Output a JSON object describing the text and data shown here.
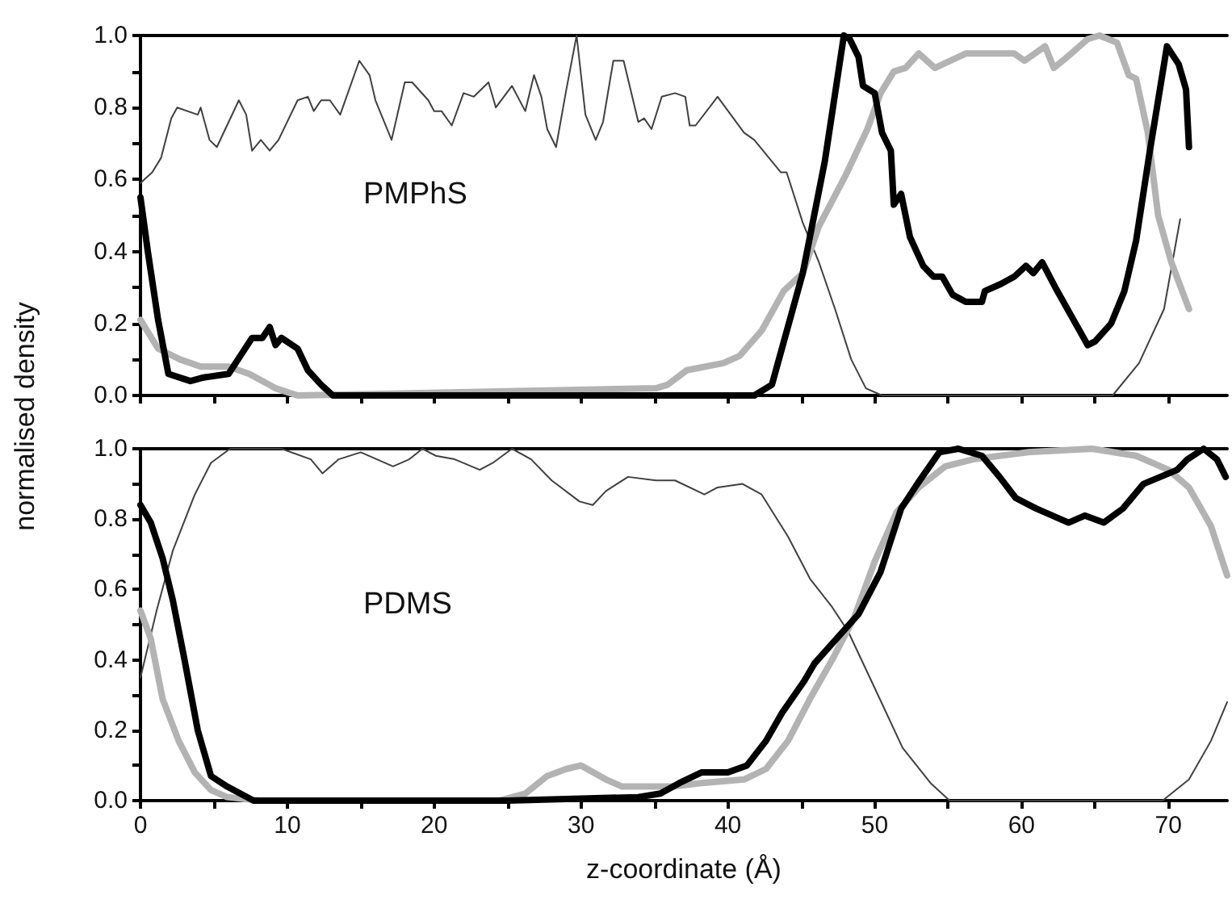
{
  "chart_data": [
    {
      "type": "line",
      "annotations": [
        "PMPhS"
      ],
      "ylabel": "normalised density",
      "xlim": [
        0,
        74
      ],
      "ylim": [
        0,
        1
      ],
      "xticks": [
        0,
        {
          "value": 5,
          "label": null
        },
        10,
        {
          "value": 15,
          "label": null
        },
        20,
        {
          "value": 25,
          "label": null
        },
        30,
        {
          "value": 35,
          "label": null
        },
        40,
        {
          "value": 45,
          "label": null
        },
        50,
        {
          "value": 55,
          "label": null
        },
        60,
        {
          "value": 65,
          "label": null
        },
        70
      ],
      "yticks": [
        {
          "value": 0,
          "label": "0.0"
        },
        {
          "value": 0.1,
          "label": null
        },
        {
          "value": 0.2,
          "label": "0.2"
        },
        {
          "value": 0.3,
          "label": null
        },
        {
          "value": 0.4,
          "label": "0.4"
        },
        {
          "value": 0.5,
          "label": null
        },
        {
          "value": 0.6,
          "label": "0.6"
        },
        {
          "value": 0.7,
          "label": null
        },
        {
          "value": 0.8,
          "label": "0.8"
        },
        {
          "value": 0.9,
          "label": null
        },
        {
          "value": 1,
          "label": "1.0"
        }
      ],
      "tick_labels": "y",
      "grid": false,
      "marker": "none",
      "line_style": "solid",
      "series": [
        {
          "color": "#000000",
          "x": [
            0,
            0.5,
            1.2,
            1.9,
            3.4,
            4.3,
            6.0,
            7.6,
            8.3,
            8.8,
            9.2,
            9.6,
            10.7,
            11.4,
            12.3,
            13.1,
            41.8,
            43.0,
            45.1,
            46.6,
            47.9,
            48.3,
            48.9,
            49.2,
            50.0,
            50.5,
            51.1,
            51.3,
            51.8,
            52.4,
            53.3,
            54.0,
            54.6,
            55.3,
            56.2,
            57.3,
            57.5,
            58.6,
            59.5,
            60.3,
            60.8,
            61.4,
            62.3,
            63.4,
            64.5,
            65.0,
            66.1,
            67.0,
            67.8,
            68.7,
            69.9,
            70.7,
            71.2,
            71.4
          ],
          "values": [
            0.55,
            0.4,
            0.21,
            0.06,
            0.04,
            0.05,
            0.06,
            0.16,
            0.16,
            0.19,
            0.14,
            0.16,
            0.13,
            0.07,
            0.03,
            0,
            0,
            0.03,
            0.34,
            0.65,
            1.0,
            0.99,
            0.94,
            0.86,
            0.84,
            0.73,
            0.68,
            0.53,
            0.56,
            0.44,
            0.36,
            0.33,
            0.33,
            0.28,
            0.26,
            0.26,
            0.29,
            0.31,
            0.33,
            0.36,
            0.34,
            0.37,
            0.3,
            0.22,
            0.14,
            0.15,
            0.2,
            0.29,
            0.43,
            0.67,
            0.97,
            0.92,
            0.85,
            0.69
          ]
        },
        {
          "color": "#b3b3b3",
          "x": [
            0,
            1.2,
            2.7,
            4.1,
            6.0,
            7.4,
            9.2,
            10.7,
            35.1,
            35.9,
            37.2,
            39.7,
            40.8,
            42.3,
            43.8,
            45.1,
            46.2,
            48.0,
            49.5,
            50.4,
            51.3,
            52.1,
            53.0,
            54.1,
            56.2,
            59.5,
            60.2,
            61.6,
            62.2,
            63.1,
            64.5,
            65.3,
            66.5,
            67.3,
            67.8,
            68.6,
            69.3,
            70.2,
            71.4
          ],
          "values": [
            0.21,
            0.13,
            0.1,
            0.08,
            0.08,
            0.06,
            0.02,
            0,
            0.02,
            0.03,
            0.07,
            0.09,
            0.11,
            0.18,
            0.29,
            0.34,
            0.47,
            0.61,
            0.74,
            0.84,
            0.9,
            0.91,
            0.95,
            0.91,
            0.95,
            0.95,
            0.93,
            0.97,
            0.91,
            0.94,
            0.99,
            1.0,
            0.98,
            0.89,
            0.88,
            0.73,
            0.5,
            0.37,
            0.24
          ]
        },
        {
          "color": "#404040",
          "x": [
            0,
            0.8,
            1.4,
            2.1,
            2.5,
            3.9,
            4.1,
            4.7,
            5.2,
            6.7,
            7.2,
            7.6,
            8.2,
            8.8,
            9.4,
            10.7,
            11.4,
            11.8,
            12.3,
            12.9,
            13.6,
            14.9,
            15.6,
            16.0,
            17.1,
            18.0,
            18.5,
            19.6,
            20.0,
            20.5,
            21.2,
            22.0,
            22.7,
            23.7,
            24.2,
            25.3,
            26.2,
            26.8,
            27.3,
            27.7,
            28.3,
            29.0,
            29.7,
            30.3,
            31.0,
            31.5,
            32.2,
            32.9,
            33.9,
            34.3,
            34.8,
            35.5,
            36.4,
            37.1,
            37.4,
            37.8,
            39.3,
            41.1,
            41.8,
            43.6,
            44.0,
            45.1,
            46.2,
            47.3,
            48.4,
            49.4,
            50.5,
            66.2,
            68.0,
            69.7,
            70.8
          ],
          "values": [
            0.59,
            0.62,
            0.66,
            0.77,
            0.8,
            0.78,
            0.8,
            0.71,
            0.69,
            0.82,
            0.78,
            0.68,
            0.71,
            0.68,
            0.71,
            0.82,
            0.83,
            0.79,
            0.82,
            0.82,
            0.78,
            0.93,
            0.89,
            0.82,
            0.71,
            0.87,
            0.87,
            0.82,
            0.79,
            0.79,
            0.75,
            0.84,
            0.83,
            0.87,
            0.8,
            0.86,
            0.79,
            0.89,
            0.83,
            0.74,
            0.69,
            0.85,
            1.0,
            0.78,
            0.71,
            0.76,
            0.93,
            0.93,
            0.76,
            0.77,
            0.74,
            0.83,
            0.84,
            0.83,
            0.75,
            0.75,
            0.83,
            0.73,
            0.71,
            0.62,
            0.62,
            0.48,
            0.37,
            0.24,
            0.1,
            0.02,
            0,
            0,
            0.09,
            0.24,
            0.49
          ]
        }
      ]
    },
    {
      "type": "line",
      "annotations": [
        "PDMS"
      ],
      "xlabel": "z-coordinate (Å)",
      "xlim": [
        0,
        74
      ],
      "ylim": [
        0,
        1
      ],
      "xticks": [
        0,
        {
          "value": 5,
          "label": null
        },
        10,
        {
          "value": 15,
          "label": null
        },
        20,
        {
          "value": 25,
          "label": null
        },
        30,
        {
          "value": 35,
          "label": null
        },
        40,
        {
          "value": 45,
          "label": null
        },
        50,
        {
          "value": 55,
          "label": null
        },
        60,
        {
          "value": 65,
          "label": null
        },
        70
      ],
      "yticks": [
        {
          "value": 0,
          "label": "0.0"
        },
        {
          "value": 0.1,
          "label": null
        },
        {
          "value": 0.2,
          "label": "0.2"
        },
        {
          "value": 0.3,
          "label": null
        },
        {
          "value": 0.4,
          "label": "0.4"
        },
        {
          "value": 0.5,
          "label": null
        },
        {
          "value": 0.6,
          "label": "0.6"
        },
        {
          "value": 0.7,
          "label": null
        },
        {
          "value": 0.8,
          "label": "0.8"
        },
        {
          "value": 0.9,
          "label": null
        },
        {
          "value": 1,
          "label": "1.0"
        }
      ],
      "grid": false,
      "marker": "none",
      "line_style": "solid",
      "series": [
        {
          "color": "#000000",
          "x": [
            0,
            0.7,
            1.5,
            2.2,
            3.0,
            3.9,
            4.8,
            5.9,
            6.8,
            7.7,
            25,
            33.9,
            35.4,
            36.7,
            38.2,
            40.0,
            41.3,
            42.6,
            43.7,
            45.2,
            45.9,
            47.4,
            48.9,
            50.4,
            51.8,
            52.9,
            54.4,
            55.7,
            57.3,
            58.5,
            59.6,
            61.0,
            63.2,
            64.3,
            65.6,
            66.9,
            68.3,
            70.6,
            71.3,
            72.4,
            73.3,
            73.9
          ],
          "values": [
            0.84,
            0.79,
            0.69,
            0.57,
            0.4,
            0.2,
            0.07,
            0.04,
            0.02,
            0,
            0,
            0.01,
            0.02,
            0.05,
            0.08,
            0.08,
            0.1,
            0.17,
            0.25,
            0.34,
            0.39,
            0.46,
            0.53,
            0.65,
            0.83,
            0.9,
            0.99,
            1.0,
            0.98,
            0.92,
            0.86,
            0.83,
            0.79,
            0.81,
            0.79,
            0.83,
            0.9,
            0.94,
            0.97,
            1.0,
            0.97,
            0.92
          ]
        },
        {
          "color": "#b3b3b3",
          "x": [
            0,
            0.7,
            1.5,
            2.6,
            3.7,
            4.8,
            5.9,
            8.1,
            24.4,
            26.2,
            27.7,
            29.0,
            30.0,
            31.7,
            32.8,
            36.2,
            38.2,
            41.1,
            42.6,
            44.1,
            45.6,
            47.1,
            48.6,
            50.0,
            51.5,
            53.0,
            54.8,
            56.7,
            60.4,
            64.8,
            67.8,
            70.0,
            71.4,
            72.9,
            74.0
          ],
          "values": [
            0.54,
            0.46,
            0.29,
            0.17,
            0.08,
            0.03,
            0.01,
            0,
            0,
            0.02,
            0.07,
            0.09,
            0.1,
            0.06,
            0.04,
            0.04,
            0.05,
            0.06,
            0.09,
            0.17,
            0.29,
            0.4,
            0.52,
            0.68,
            0.82,
            0.89,
            0.95,
            0.97,
            0.99,
            1.0,
            0.98,
            0.94,
            0.89,
            0.78,
            0.64
          ]
        },
        {
          "color": "#404040",
          "x": [
            0,
            1.1,
            2.2,
            3.7,
            4.8,
            6.1,
            9.6,
            11.6,
            12.4,
            13.5,
            15.0,
            16.1,
            17.2,
            18.3,
            19.2,
            20.1,
            21.4,
            23.1,
            24.0,
            25.3,
            26.6,
            28.0,
            29.9,
            30.8,
            31.7,
            33.2,
            35.1,
            36.4,
            38.4,
            39.3,
            41.0,
            42.3,
            44.1,
            45.6,
            47.1,
            48.2,
            50.0,
            51.9,
            53.8,
            55.1,
            69.6,
            71.4,
            72.9,
            74.0
          ],
          "values": [
            0.35,
            0.54,
            0.71,
            0.87,
            0.96,
            1.0,
            1.0,
            0.97,
            0.93,
            0.97,
            0.99,
            0.97,
            0.95,
            0.97,
            1.0,
            0.98,
            0.97,
            0.94,
            0.96,
            1.0,
            0.97,
            0.91,
            0.85,
            0.84,
            0.88,
            0.92,
            0.91,
            0.91,
            0.87,
            0.89,
            0.9,
            0.87,
            0.75,
            0.63,
            0.55,
            0.48,
            0.32,
            0.15,
            0.05,
            0,
            0,
            0.06,
            0.17,
            0.28
          ]
        }
      ]
    }
  ]
}
